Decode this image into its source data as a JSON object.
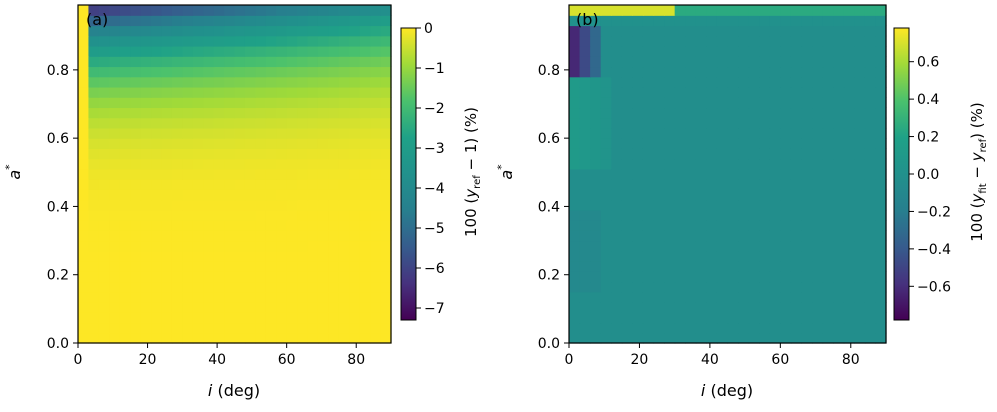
{
  "chart_data": [
    {
      "type": "heatmap",
      "panel_label": "(a)",
      "xlabel": "i (deg)",
      "ylabel": "a*",
      "xlim": [
        0,
        90
      ],
      "ylim": [
        0,
        0.99
      ],
      "x_ticks": [
        0,
        20,
        40,
        60,
        80
      ],
      "y_ticks": [
        0.0,
        0.2,
        0.4,
        0.6,
        0.8
      ],
      "colorbar": {
        "label": "100 (y_ref − 1) (%)",
        "ticks": [
          "0",
          "−1",
          "−2",
          "−3",
          "−4",
          "−5",
          "−6",
          "−7"
        ],
        "range": [
          -7.3,
          0
        ],
        "colormap": "viridis"
      },
      "grid": false
    },
    {
      "type": "heatmap",
      "panel_label": "(b)",
      "xlabel": "i (deg)",
      "ylabel": "a*",
      "xlim": [
        0,
        90
      ],
      "ylim": [
        0,
        0.99
      ],
      "x_ticks": [
        0,
        20,
        40,
        60,
        80
      ],
      "y_ticks": [
        0.0,
        0.2,
        0.4,
        0.6,
        0.8
      ],
      "colorbar": {
        "label": "100 (y_fit − y_ref) (%)",
        "ticks": [
          "0.6",
          "0.4",
          "0.2",
          "0.0",
          "−0.2",
          "−0.4",
          "−0.6"
        ],
        "range": [
          -0.78,
          0.78
        ],
        "colormap": "viridis"
      },
      "grid": false
    }
  ],
  "labels": {
    "a_panel": "(a)",
    "b_panel": "(b)",
    "x_axis_label": "(deg)",
    "x_axis_var": "i",
    "y_axis_var": "a",
    "y_axis_sup": "*",
    "cbar_a_prefix": "100 (",
    "cbar_a_mid": "y",
    "cbar_a_sub": "ref",
    "cbar_a_suffix": " − 1) (%)",
    "cbar_b_prefix": "100 (",
    "cbar_b_y1": "y",
    "cbar_b_sub1": "fit",
    "cbar_b_minus": " − ",
    "cbar_b_y2": "y",
    "cbar_b_sub2": "ref",
    "cbar_b_suffix": ") (%)"
  }
}
